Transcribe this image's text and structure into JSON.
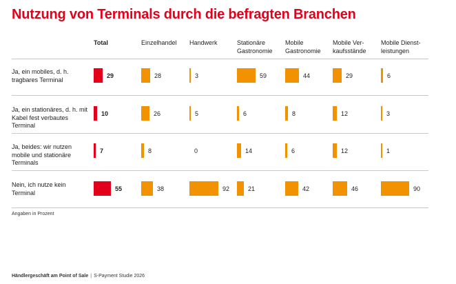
{
  "chart_data": {
    "type": "table",
    "title": "Nutzung von Terminals durch die befragten Branchen",
    "columns": [
      {
        "label": "Total"
      },
      {
        "label": "Einzelhandel"
      },
      {
        "label": "Handwerk"
      },
      {
        "label": "Stationäre Gastronomie"
      },
      {
        "label": "Mobile Gastronomie"
      },
      {
        "label": "Mobile Ver-kaufsstände"
      },
      {
        "label": "Mobile Dienst-leistungen"
      }
    ],
    "rows": [
      {
        "label": "Ja, ein mobiles, d. h. tragbares Terminal",
        "values": [
          29,
          28,
          3,
          59,
          44,
          29,
          6
        ]
      },
      {
        "label": "Ja, ein stationäres, d. h. mit Kabel fest verbautes Terminal",
        "values": [
          10,
          26,
          5,
          6,
          8,
          12,
          3
        ]
      },
      {
        "label": "Ja, beides: wir nutzen mobile und stationäre Terminals",
        "values": [
          7,
          8,
          0,
          14,
          6,
          12,
          1
        ]
      },
      {
        "label": "Nein, ich nutze kein Terminal",
        "values": [
          55,
          38,
          92,
          21,
          42,
          46,
          90
        ]
      }
    ],
    "colors": {
      "total": "#e2001a",
      "sector": "#f39200",
      "title": "#e2001a"
    }
  },
  "note": "Angaben in Prozent",
  "footer": {
    "source_bold": "Händlergeschäft am Point of Sale",
    "separator": "|",
    "source": "S-Payment Studie 2026"
  }
}
